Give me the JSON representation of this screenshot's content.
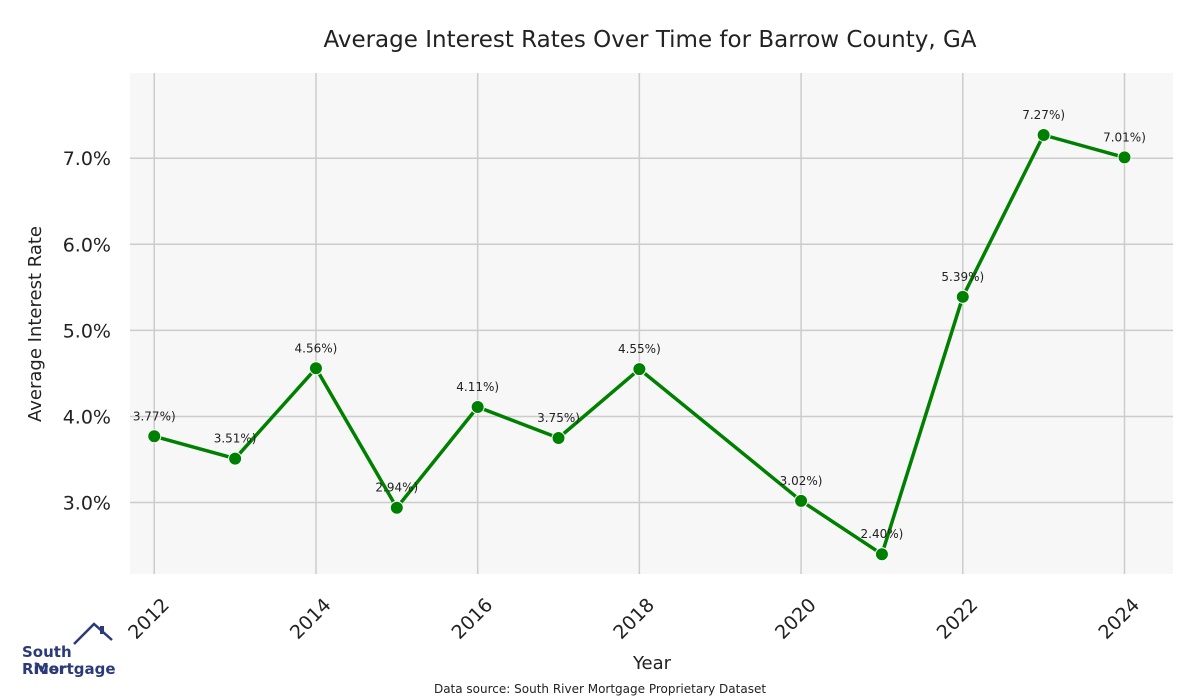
{
  "chart_data": {
    "type": "line",
    "title": "Average Interest Rates Over Time for Barrow County, GA",
    "xlabel": "Year",
    "ylabel": "Average Interest Rate",
    "x": [
      2012,
      2013,
      2014,
      2015,
      2016,
      2017,
      2018,
      2020,
      2021,
      2022,
      2023,
      2024
    ],
    "values": [
      3.77,
      3.51,
      4.56,
      2.94,
      4.11,
      3.75,
      4.55,
      3.02,
      2.4,
      5.39,
      7.27,
      7.01
    ],
    "data_labels": [
      "3.77%)",
      "3.51%)",
      "4.56%)",
      "2.94%)",
      "4.11%)",
      "3.75%)",
      "4.55%)",
      "3.02%)",
      "2.40%)",
      "5.39%)",
      "7.27%)",
      "7.01%)"
    ],
    "xticks": [
      2012,
      2014,
      2016,
      2018,
      2020,
      2022,
      2024
    ],
    "xtick_labels": [
      "2012",
      "2014",
      "2016",
      "2018",
      "2020",
      "2022",
      "2024"
    ],
    "yticks": [
      3.0,
      4.0,
      5.0,
      6.0,
      7.0
    ],
    "ytick_labels": [
      "3.0%",
      "4.0%",
      "5.0%",
      "6.0%",
      "7.0%"
    ],
    "xlim": [
      2011.7,
      2024.6
    ],
    "ylim": [
      2.17,
      7.99
    ],
    "grid": true,
    "line_color": "#008000",
    "background_color": "#f7f7f7",
    "grid_color": "#cccccc"
  },
  "footer": {
    "source": "Data source: South River Mortgage Proprietary Dataset"
  },
  "logo": {
    "line1": "South River",
    "line2": "Mortgage",
    "color": "#2b3a78"
  }
}
